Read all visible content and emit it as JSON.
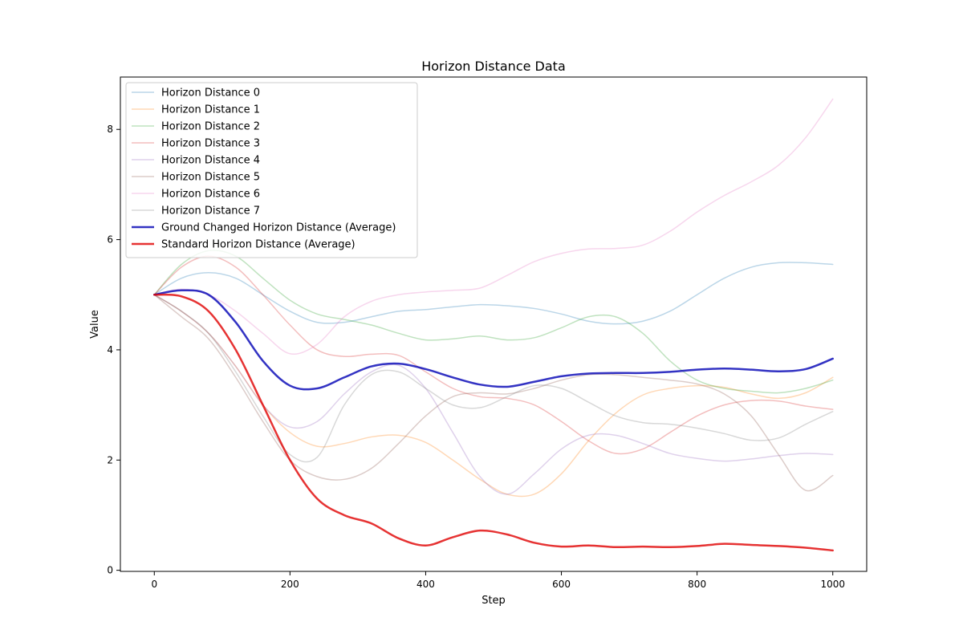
{
  "chart_data": {
    "type": "line",
    "title": "Horizon Distance Data",
    "xlabel": "Step",
    "ylabel": "Value",
    "xlim": [
      -50,
      1050
    ],
    "ylim": [
      -0.02,
      8.95
    ],
    "xticks": [
      0,
      200,
      400,
      600,
      800,
      1000
    ],
    "yticks": [
      0,
      2,
      4,
      6,
      8
    ],
    "legend_position": "top-left",
    "grid": false,
    "x": [
      0,
      40,
      80,
      120,
      160,
      200,
      240,
      280,
      320,
      360,
      400,
      440,
      480,
      520,
      560,
      600,
      640,
      680,
      720,
      760,
      800,
      840,
      880,
      920,
      960,
      1000
    ],
    "series": [
      {
        "name": "Horizon Distance 0",
        "color": "#1f77b4",
        "opacity": 0.3,
        "width": 1.5,
        "values": [
          5.0,
          5.3,
          5.4,
          5.3,
          5.0,
          4.7,
          4.5,
          4.5,
          4.6,
          4.7,
          4.73,
          4.78,
          4.82,
          4.8,
          4.75,
          4.65,
          4.52,
          4.47,
          4.52,
          4.7,
          5.0,
          5.3,
          5.5,
          5.58,
          5.58,
          5.55
        ]
      },
      {
        "name": "Horizon Distance 1",
        "color": "#ff7f0e",
        "opacity": 0.3,
        "width": 1.5,
        "values": [
          5.0,
          4.7,
          4.3,
          3.7,
          3.0,
          2.5,
          2.25,
          2.3,
          2.42,
          2.45,
          2.32,
          2.0,
          1.65,
          1.38,
          1.38,
          1.75,
          2.35,
          2.85,
          3.18,
          3.3,
          3.35,
          3.32,
          3.2,
          3.12,
          3.22,
          3.5
        ]
      },
      {
        "name": "Horizon Distance 2",
        "color": "#2ca02c",
        "opacity": 0.3,
        "width": 1.5,
        "values": [
          5.0,
          5.55,
          5.8,
          5.7,
          5.3,
          4.9,
          4.65,
          4.55,
          4.45,
          4.3,
          4.18,
          4.2,
          4.25,
          4.18,
          4.22,
          4.4,
          4.6,
          4.6,
          4.3,
          3.8,
          3.45,
          3.3,
          3.25,
          3.22,
          3.3,
          3.45
        ]
      },
      {
        "name": "Horizon Distance 3",
        "color": "#d62728",
        "opacity": 0.3,
        "width": 1.5,
        "values": [
          5.0,
          5.5,
          5.7,
          5.5,
          5.0,
          4.45,
          4.0,
          3.88,
          3.92,
          3.9,
          3.6,
          3.3,
          3.15,
          3.12,
          3.0,
          2.7,
          2.35,
          2.12,
          2.2,
          2.5,
          2.8,
          3.0,
          3.08,
          3.07,
          2.98,
          2.92
        ]
      },
      {
        "name": "Horizon Distance 4",
        "color": "#9467bd",
        "opacity": 0.3,
        "width": 1.5,
        "values": [
          5.0,
          4.7,
          4.3,
          3.7,
          3.0,
          2.6,
          2.7,
          3.2,
          3.6,
          3.72,
          3.3,
          2.5,
          1.7,
          1.38,
          1.75,
          2.2,
          2.45,
          2.45,
          2.3,
          2.12,
          2.03,
          1.98,
          2.02,
          2.08,
          2.12,
          2.1
        ]
      },
      {
        "name": "Horizon Distance 5",
        "color": "#8c564b",
        "opacity": 0.3,
        "width": 1.5,
        "values": [
          5.0,
          4.6,
          4.2,
          3.5,
          2.7,
          2.0,
          1.7,
          1.65,
          1.85,
          2.3,
          2.8,
          3.15,
          3.22,
          3.2,
          3.3,
          3.45,
          3.55,
          3.55,
          3.5,
          3.45,
          3.38,
          3.2,
          2.8,
          2.1,
          1.45,
          1.72
        ]
      },
      {
        "name": "Horizon Distance 6",
        "color": "#e377c2",
        "opacity": 0.3,
        "width": 1.5,
        "values": [
          5.0,
          5.1,
          5.0,
          4.7,
          4.3,
          3.93,
          4.1,
          4.6,
          4.88,
          5.0,
          5.05,
          5.08,
          5.12,
          5.35,
          5.6,
          5.75,
          5.83,
          5.84,
          5.9,
          6.15,
          6.5,
          6.8,
          7.05,
          7.35,
          7.85,
          8.55
        ]
      },
      {
        "name": "Horizon Distance 7",
        "color": "#7f7f7f",
        "opacity": 0.3,
        "width": 1.5,
        "values": [
          5.0,
          4.7,
          4.3,
          3.6,
          2.8,
          2.1,
          2.05,
          3.0,
          3.55,
          3.6,
          3.3,
          3.0,
          2.95,
          3.15,
          3.35,
          3.3,
          3.05,
          2.8,
          2.68,
          2.65,
          2.58,
          2.48,
          2.36,
          2.4,
          2.65,
          2.88
        ]
      },
      {
        "name": "Ground Changed Horizon Distance (Average)",
        "color": "#0000b4",
        "opacity": 0.8,
        "width": 2.5,
        "values": [
          5.0,
          5.08,
          5.0,
          4.5,
          3.8,
          3.35,
          3.3,
          3.5,
          3.7,
          3.75,
          3.65,
          3.5,
          3.37,
          3.33,
          3.42,
          3.52,
          3.57,
          3.58,
          3.58,
          3.6,
          3.64,
          3.66,
          3.64,
          3.61,
          3.65,
          3.84
        ]
      },
      {
        "name": "Standard Horizon Distance (Average)",
        "color": "#e00000",
        "opacity": 0.8,
        "width": 2.5,
        "values": [
          5.0,
          4.97,
          4.7,
          4.0,
          3.0,
          2.0,
          1.3,
          1.0,
          0.85,
          0.58,
          0.45,
          0.6,
          0.72,
          0.65,
          0.5,
          0.43,
          0.45,
          0.42,
          0.43,
          0.42,
          0.44,
          0.48,
          0.46,
          0.44,
          0.41,
          0.36
        ]
      }
    ]
  }
}
